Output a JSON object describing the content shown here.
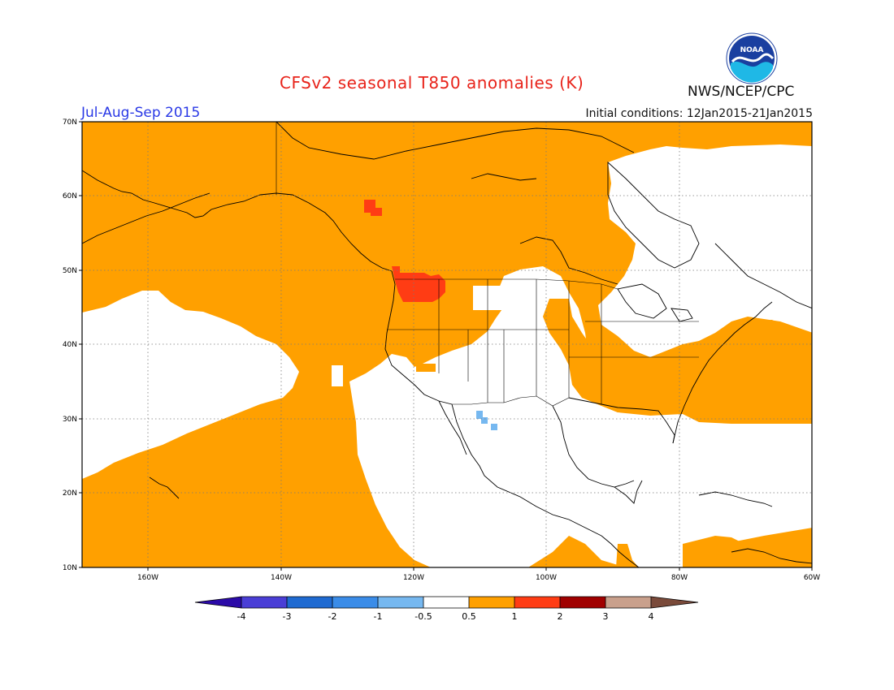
{
  "title": "CFSv2 seasonal T850 anomalies (K)",
  "period": "Jul-Aug-Sep 2015",
  "initial_conditions": "Initial conditions: 12Jan2015-21Jan2015",
  "agency": "NWS/NCEP/CPC",
  "logo_text": "NOAA",
  "map": {
    "lon_range": [
      -170,
      -60
    ],
    "lat_range": [
      10,
      70
    ],
    "lat_ticks": [
      "70N",
      "60N",
      "50N",
      "40N",
      "30N",
      "20N",
      "10N"
    ],
    "lon_ticks": [
      "160W",
      "140W",
      "120W",
      "100W",
      "80W",
      "60W"
    ],
    "background_color": "#ffa000",
    "neutral_color": "#ffffff"
  },
  "colorbar": {
    "labels": [
      "-4",
      "-3",
      "-2",
      "-1",
      "-0.5",
      "0.5",
      "1",
      "2",
      "3",
      "4"
    ],
    "colors": [
      "#2b0aa8",
      "#4a3ed6",
      "#1f6ad1",
      "#3a8ce8",
      "#76b8f0",
      "#ffffff",
      "#ffa000",
      "#ff3c14",
      "#a00000",
      "#c9a08c",
      "#7a4a3a"
    ]
  }
}
